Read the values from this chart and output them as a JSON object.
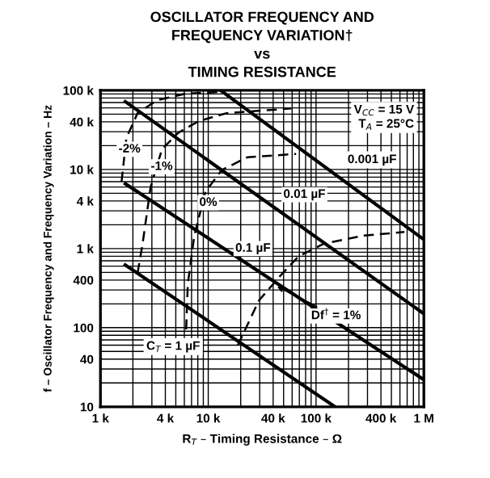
{
  "chart_data": {
    "type": "line",
    "title": "OSCILLATOR FREQUENCY AND\nFREQUENCY VARIATION†\nvs\nTIMING RESISTANCE",
    "xlabel": "R$_{T}$ – Timing Resistance – Ω",
    "ylabel": "f – Oscillator Frequency and Frequency Variation – Hz",
    "log": "xy",
    "grid": true,
    "legend": false,
    "xlim": [
      1000,
      1000000
    ],
    "ylim": [
      10,
      100000
    ],
    "xticks": [
      {
        "value": 1000,
        "label": "1 k"
      },
      {
        "value": 4000,
        "label": "4 k"
      },
      {
        "value": 10000,
        "label": "10 k"
      },
      {
        "value": 40000,
        "label": "40 k"
      },
      {
        "value": 100000,
        "label": "100 k"
      },
      {
        "value": 400000,
        "label": "400 k"
      },
      {
        "value": 1000000,
        "label": "1 M"
      }
    ],
    "yticks": [
      {
        "value": 10,
        "label": "10"
      },
      {
        "value": 40,
        "label": "40"
      },
      {
        "value": 100,
        "label": "100"
      },
      {
        "value": 400,
        "label": "400"
      },
      {
        "value": 1000,
        "label": "1 k"
      },
      {
        "value": 4000,
        "label": "4 k"
      },
      {
        "value": 10000,
        "label": "10 k"
      },
      {
        "value": 40000,
        "label": "40 k"
      },
      {
        "value": 100000,
        "label": "100 k"
      }
    ],
    "series": [
      {
        "color": "#000000",
        "line_style": "solid",
        "x": [
          13000,
          1000000
        ],
        "values": [
          100000,
          1300
        ]
      },
      {
        "color": "#000000",
        "line_style": "solid",
        "x": [
          1700,
          1000000
        ],
        "values": [
          72000,
          150
        ]
      },
      {
        "color": "#000000",
        "line_style": "solid",
        "x": [
          1700,
          1000000
        ],
        "values": [
          6600,
          22
        ]
      },
      {
        "color": "#000000",
        "line_style": "solid",
        "x": [
          1700,
          150000
        ],
        "values": [
          620,
          10
        ]
      },
      {
        "color": "#000000",
        "line_style": "dashed",
        "x": [
          1570,
          1740,
          2210,
          3350,
          6240,
          12300
        ],
        "values": [
          7000,
          25000,
          51500,
          75000,
          91000,
          95000
        ]
      },
      {
        "color": "#000000",
        "line_style": "dashed",
        "x": [
          2210,
          2460,
          2920,
          3720,
          5250,
          8220,
          14800,
          59000
        ],
        "values": [
          490,
          1150,
          6000,
          18000,
          29000,
          41000,
          51500,
          59000
        ]
      },
      {
        "color": "#000000",
        "line_style": "dashed",
        "x": [
          6240,
          6460,
          7420,
          9440,
          13300,
          23200,
          65300
        ],
        "values": [
          95,
          355,
          1460,
          5250,
          9800,
          14300,
          15700
        ]
      },
      {
        "color": "#000000",
        "line_style": "dashed",
        "x": [
          18800,
          29500,
          46000,
          69000,
          118000,
          276000,
          660000
        ],
        "values": [
          60,
          220,
          445,
          800,
          1150,
          1460,
          1620
        ]
      }
    ],
    "annotations": [
      "V$_{CC}$ = 15 V\nT$_{A}$ = 25°C",
      {
        "text": "-2%",
        "x": 1860,
        "y": 18000
      },
      {
        "text": "-1%",
        "x": 3700,
        "y": 10800
      },
      {
        "text": "0%",
        "x": 10000,
        "y": 3800
      },
      "0.001 µF",
      {
        "text": "0.01 µF",
        "x": 78000,
        "y": 4800
      },
      {
        "text": "0.1 µF",
        "x": 26000,
        "y": 1000
      },
      "C$_{T}$ = 1 µF",
      {
        "text": "Df$^{†}$ = 1%",
        "x": 40000,
        "y": 350
      }
    ]
  }
}
